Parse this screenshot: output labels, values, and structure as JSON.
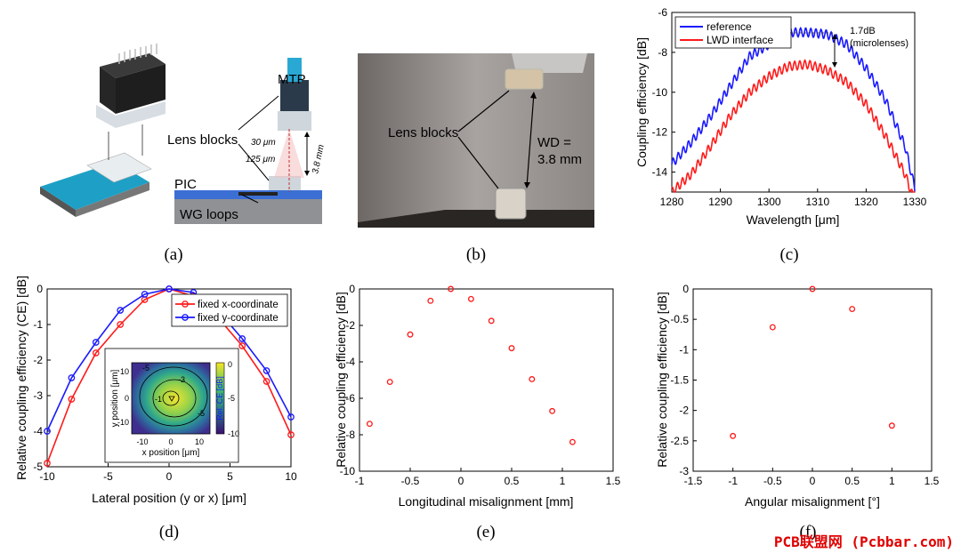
{
  "captions": {
    "a": "(a)",
    "b": "(b)",
    "c": "(c)",
    "d": "(d)",
    "e": "(e)",
    "f": "(f)"
  },
  "panel_a": {
    "mtp": "MTP",
    "lens_blocks": "Lens blocks",
    "pic": "PIC",
    "wg_loops": "WG loops",
    "d30": "30 μm",
    "d125": "125 μm",
    "d38": "3.8 mm"
  },
  "panel_b": {
    "lens_blocks": "Lens blocks",
    "wd1": "WD =",
    "wd2": "3.8 mm"
  },
  "watermark": "PCB联盟网 (Pcbbar.com)",
  "chart_data": [
    {
      "panel": "c",
      "type": "line",
      "xlabel": "Wavelength [μm]",
      "ylabel": "Coupling efficiency [dB]",
      "xlim": [
        1280,
        1330
      ],
      "ylim": [
        -15,
        -6
      ],
      "xticks": [
        1280,
        1290,
        1300,
        1310,
        1320,
        1330
      ],
      "yticks": [
        -6,
        -8,
        -10,
        -12,
        -14
      ],
      "legend": "top-left",
      "annotation": [
        "1.7dB",
        "(microlenses)"
      ],
      "x": [
        1280,
        1284,
        1288,
        1292,
        1296,
        1300,
        1304,
        1308,
        1312,
        1316,
        1320,
        1324,
        1328,
        1330
      ],
      "series": [
        {
          "name": "reference",
          "color": "#1a1aff",
          "values": [
            -13.6,
            -12.5,
            -11.2,
            -9.7,
            -8.2,
            -7.6,
            -7.0,
            -7.0,
            -7.1,
            -7.6,
            -8.8,
            -10.4,
            -12.7,
            -14.8
          ]
        },
        {
          "name": "LWD interface",
          "color": "#ff1a1a",
          "values": [
            -15.0,
            -14.1,
            -12.7,
            -11.2,
            -10.0,
            -9.2,
            -8.7,
            -8.6,
            -8.9,
            -9.5,
            -10.6,
            -12.2,
            -14.1,
            -15.5
          ]
        }
      ]
    },
    {
      "panel": "d",
      "type": "line",
      "xlabel": "Lateral position (y or x) [μm]",
      "ylabel": "Relative coupling efficiency (CE) [dB]",
      "xlim": [
        -10,
        10
      ],
      "ylim": [
        -5,
        0
      ],
      "xticks": [
        -10,
        -5,
        0,
        5,
        10
      ],
      "yticks": [
        0,
        -1,
        -2,
        -3,
        -4,
        -5
      ],
      "legend": "top-right",
      "x": [
        -10,
        -8,
        -6,
        -4,
        -2,
        0,
        2,
        4,
        6,
        8,
        10
      ],
      "series": [
        {
          "name": "fixed x-coordinate",
          "color": "#ff1a1a",
          "values": [
            -4.9,
            -3.1,
            -1.8,
            -1.0,
            -0.3,
            0,
            -0.2,
            -0.8,
            -1.6,
            -2.6,
            -4.1
          ]
        },
        {
          "name": "fixed y-coordinate",
          "color": "#1a1aff",
          "values": [
            -4.0,
            -2.5,
            -1.5,
            -0.6,
            -0.15,
            0,
            -0.1,
            -0.6,
            -1.4,
            -2.3,
            -3.6
          ]
        }
      ],
      "inset": {
        "type": "heatmap",
        "xlabel": "x position [μm]",
        "ylabel": "y position [μm]",
        "colorbar_label": "Rel. CE [dB]",
        "colorbar_ticks": [
          0,
          -5,
          -10
        ],
        "ticks": [
          -10,
          0,
          10
        ],
        "contour_labels": [
          "-5",
          "-3",
          "-1",
          "-5"
        ]
      }
    },
    {
      "panel": "e",
      "type": "scatter",
      "xlabel": "Longitudinal misalignment [mm]",
      "ylabel": "Relative coupling efficiency [dB]",
      "xlim": [
        -1,
        1.5
      ],
      "ylim": [
        -10,
        0
      ],
      "xticks": [
        -1,
        -0.5,
        0,
        0.5,
        1,
        1.5
      ],
      "yticks": [
        0,
        -2,
        -4,
        -6,
        -8,
        -10
      ],
      "x": [
        -0.9,
        -0.7,
        -0.5,
        -0.3,
        -0.1,
        0.1,
        0.3,
        0.5,
        0.7,
        0.9,
        1.1
      ],
      "series": [
        {
          "color": "#ff1a1a",
          "values": [
            -7.4,
            -5.1,
            -2.5,
            -0.65,
            0,
            -0.55,
            -1.75,
            -3.25,
            -4.95,
            -6.7,
            -8.4
          ]
        }
      ]
    },
    {
      "panel": "f",
      "type": "scatter",
      "xlabel": "Angular misalignment [°]",
      "ylabel": "Relative coupling efficiency [dB]",
      "xlim": [
        -1.5,
        1.5
      ],
      "ylim": [
        -3,
        0
      ],
      "xticks": [
        -1.5,
        -1,
        -0.5,
        0,
        0.5,
        1,
        1.5
      ],
      "yticks": [
        0,
        -0.5,
        -1,
        -1.5,
        -2,
        -2.5,
        -3
      ],
      "x": [
        -1,
        -0.5,
        0,
        0.5,
        1
      ],
      "series": [
        {
          "color": "#ff1a1a",
          "values": [
            -2.42,
            -0.63,
            0,
            -0.33,
            -2.25
          ]
        }
      ]
    }
  ]
}
